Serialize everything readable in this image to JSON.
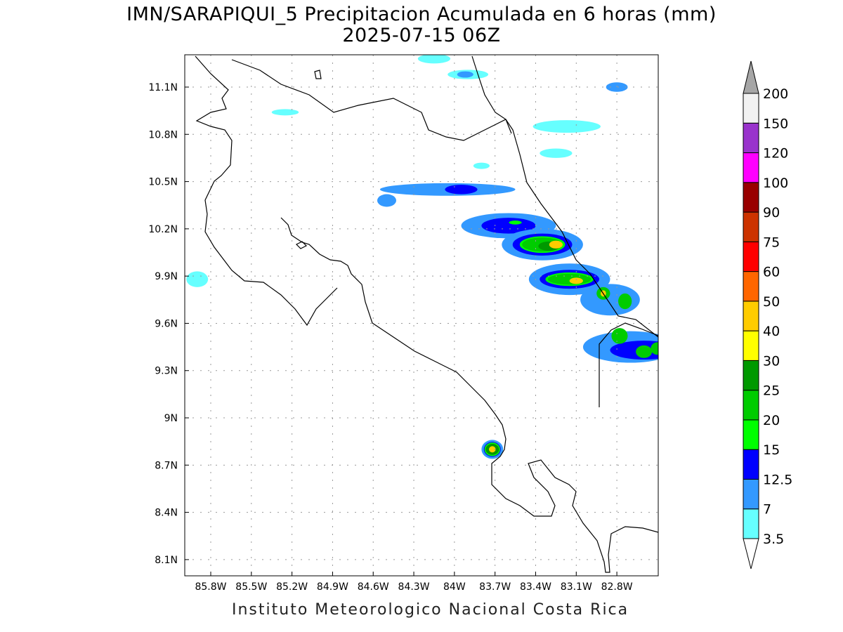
{
  "title": "IMN/SARAPIQUI_5 Precipitacion Acumulada en 6 horas (mm)",
  "subtitle": "2025-07-15 06Z",
  "footer": "Instituto Meteorologico Nacional Costa Rica",
  "chart_data": {
    "type": "heatmap",
    "lon_range": [
      -86.0,
      -83.0
    ],
    "lon_ticks": [
      "85.8W",
      "85.5W",
      "85.2W",
      "84.9W",
      "84.6W",
      "84.3W",
      "84W",
      "83.7W",
      "83.4W",
      "83.1W",
      "82.8W"
    ],
    "lon_tick_values": [
      -85.8,
      -85.5,
      -85.2,
      -84.9,
      -84.6,
      -84.3,
      -84.0,
      -83.7,
      -83.4,
      -83.1,
      -82.8
    ],
    "lat_ticks": [
      "11.1N",
      "10.8N",
      "10.5N",
      "10.2N",
      "9.9N",
      "9.6N",
      "9.3N",
      "9N",
      "8.7N",
      "8.4N",
      "8.1N"
    ],
    "lat_tick_values": [
      11.1,
      10.8,
      10.5,
      10.2,
      9.9,
      9.6,
      9.3,
      9.0,
      8.7,
      8.4,
      8.1
    ],
    "grid": true,
    "colorbar": {
      "levels": [
        "3.5",
        "7",
        "12.5",
        "15",
        "20",
        "25",
        "30",
        "40",
        "50",
        "60",
        "75",
        "90",
        "100",
        "120",
        "150",
        "200"
      ],
      "colors": [
        "#66ffff",
        "#3399ff",
        "#0000ff",
        "#00ff00",
        "#00cc00",
        "#009900",
        "#ffff00",
        "#ffcc00",
        "#ff6600",
        "#ff0000",
        "#cc3300",
        "#990000",
        "#ff00ff",
        "#9933cc",
        "#f2f2f2"
      ],
      "over_color": "#a6a6a6",
      "under_color": "#ffffff"
    },
    "precip_cells": [
      {
        "lon": -84.05,
        "lat": 10.45,
        "rx": 0.5,
        "ry": 0.04,
        "level": 1
      },
      {
        "lon": -83.95,
        "lat": 10.45,
        "rx": 0.12,
        "ry": 0.03,
        "level": 2
      },
      {
        "lon": -83.6,
        "lat": 10.22,
        "rx": 0.35,
        "ry": 0.08,
        "level": 1
      },
      {
        "lon": -83.6,
        "lat": 10.22,
        "rx": 0.2,
        "ry": 0.05,
        "level": 2
      },
      {
        "lon": -83.55,
        "lat": 10.24,
        "rx": 0.05,
        "ry": 0.015,
        "level": 3
      },
      {
        "lon": -83.35,
        "lat": 10.1,
        "rx": 0.3,
        "ry": 0.1,
        "level": 1
      },
      {
        "lon": -83.35,
        "lat": 10.1,
        "rx": 0.22,
        "ry": 0.07,
        "level": 2
      },
      {
        "lon": -83.35,
        "lat": 10.1,
        "rx": 0.17,
        "ry": 0.055,
        "level": 3
      },
      {
        "lon": -83.35,
        "lat": 10.1,
        "rx": 0.15,
        "ry": 0.045,
        "level": 4
      },
      {
        "lon": -83.3,
        "lat": 10.09,
        "rx": 0.08,
        "ry": 0.03,
        "level": 5
      },
      {
        "lon": -83.25,
        "lat": 10.1,
        "rx": 0.05,
        "ry": 0.025,
        "level": 7
      },
      {
        "lon": -83.15,
        "lat": 9.88,
        "rx": 0.3,
        "ry": 0.1,
        "level": 1
      },
      {
        "lon": -83.15,
        "lat": 9.88,
        "rx": 0.22,
        "ry": 0.06,
        "level": 2
      },
      {
        "lon": -83.15,
        "lat": 9.88,
        "rx": 0.18,
        "ry": 0.045,
        "level": 3
      },
      {
        "lon": -83.15,
        "lat": 9.88,
        "rx": 0.16,
        "ry": 0.035,
        "level": 4
      },
      {
        "lon": -83.1,
        "lat": 9.87,
        "rx": 0.05,
        "ry": 0.02,
        "level": 7
      },
      {
        "lon": -82.85,
        "lat": 9.75,
        "rx": 0.22,
        "ry": 0.1,
        "level": 1
      },
      {
        "lon": -82.9,
        "lat": 9.79,
        "rx": 0.05,
        "ry": 0.04,
        "level": 4
      },
      {
        "lon": -82.9,
        "lat": 9.79,
        "rx": 0.02,
        "ry": 0.02,
        "level": 7
      },
      {
        "lon": -82.74,
        "lat": 9.74,
        "rx": 0.05,
        "ry": 0.05,
        "level": 4
      },
      {
        "lon": -82.7,
        "lat": 9.45,
        "rx": 0.35,
        "ry": 0.1,
        "level": 1
      },
      {
        "lon": -82.6,
        "lat": 9.43,
        "rx": 0.25,
        "ry": 0.06,
        "level": 2
      },
      {
        "lon": -82.78,
        "lat": 9.52,
        "rx": 0.06,
        "ry": 0.05,
        "level": 4
      },
      {
        "lon": -82.6,
        "lat": 9.42,
        "rx": 0.06,
        "ry": 0.04,
        "level": 4
      },
      {
        "lon": -82.5,
        "lat": 9.44,
        "rx": 0.05,
        "ry": 0.04,
        "level": 4
      },
      {
        "lon": -83.72,
        "lat": 8.8,
        "rx": 0.08,
        "ry": 0.06,
        "level": 1
      },
      {
        "lon": -83.72,
        "lat": 8.8,
        "rx": 0.06,
        "ry": 0.045,
        "level": 3
      },
      {
        "lon": -83.72,
        "lat": 8.8,
        "rx": 0.05,
        "ry": 0.035,
        "level": 5
      },
      {
        "lon": -83.72,
        "lat": 8.8,
        "rx": 0.025,
        "ry": 0.02,
        "level": 7
      },
      {
        "lon": -84.15,
        "lat": 11.28,
        "rx": 0.12,
        "ry": 0.03,
        "level": 0
      },
      {
        "lon": -83.9,
        "lat": 11.18,
        "rx": 0.15,
        "ry": 0.03,
        "level": 0
      },
      {
        "lon": -83.92,
        "lat": 11.18,
        "rx": 0.06,
        "ry": 0.02,
        "level": 1
      },
      {
        "lon": -83.17,
        "lat": 10.85,
        "rx": 0.25,
        "ry": 0.04,
        "level": 0
      },
      {
        "lon": -82.8,
        "lat": 11.1,
        "rx": 0.08,
        "ry": 0.03,
        "level": 1
      },
      {
        "lon": -85.25,
        "lat": 10.94,
        "rx": 0.1,
        "ry": 0.02,
        "level": 0
      },
      {
        "lon": -84.5,
        "lat": 10.38,
        "rx": 0.07,
        "ry": 0.04,
        "level": 1
      },
      {
        "lon": -85.9,
        "lat": 9.88,
        "rx": 0.08,
        "ry": 0.05,
        "level": 0
      },
      {
        "lon": -83.25,
        "lat": 10.68,
        "rx": 0.12,
        "ry": 0.03,
        "level": 0
      },
      {
        "lon": -83.8,
        "lat": 10.6,
        "rx": 0.06,
        "ry": 0.02,
        "level": 0
      }
    ]
  }
}
